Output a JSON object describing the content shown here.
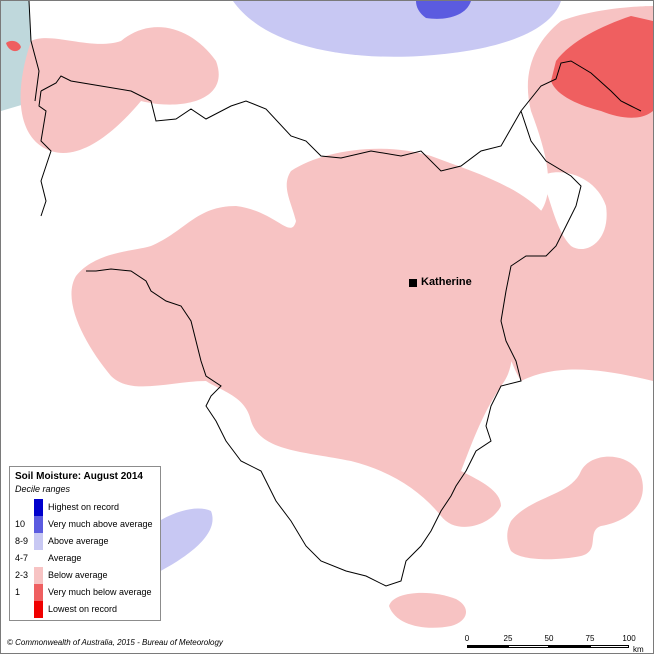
{
  "map": {
    "town": "Katherine",
    "colors": {
      "highest": "#0000cc",
      "very_much_above": "#5b5be0",
      "above": "#c8c8f3",
      "average": "#ffffff",
      "below": "#f7c3c3",
      "very_much_below": "#ef5f60",
      "lowest": "#f00000",
      "sea": "#bfd8dc",
      "boundary": "#000000"
    }
  },
  "legend": {
    "title": "Soil Moisture: August 2014",
    "subtitle": "Decile ranges",
    "items": [
      {
        "code": "",
        "label": "Highest on record",
        "color": "#0000cc"
      },
      {
        "code": "10",
        "label": "Very much above average",
        "color": "#5b5be0"
      },
      {
        "code": "8-9",
        "label": "Above average",
        "color": "#c8c8f3"
      },
      {
        "code": "4-7",
        "label": "Average",
        "color": "#ffffff"
      },
      {
        "code": "2-3",
        "label": "Below average",
        "color": "#f7c3c3"
      },
      {
        "code": "1",
        "label": "Very much below average",
        "color": "#ef5f60"
      },
      {
        "code": "",
        "label": "Lowest on record",
        "color": "#f00000"
      }
    ]
  },
  "scalebar": {
    "ticks": [
      "0",
      "25",
      "50",
      "75",
      "100"
    ],
    "unit": "km"
  },
  "copyright": "© Commonwealth of Australia, 2015 - Bureau of Meteorology"
}
